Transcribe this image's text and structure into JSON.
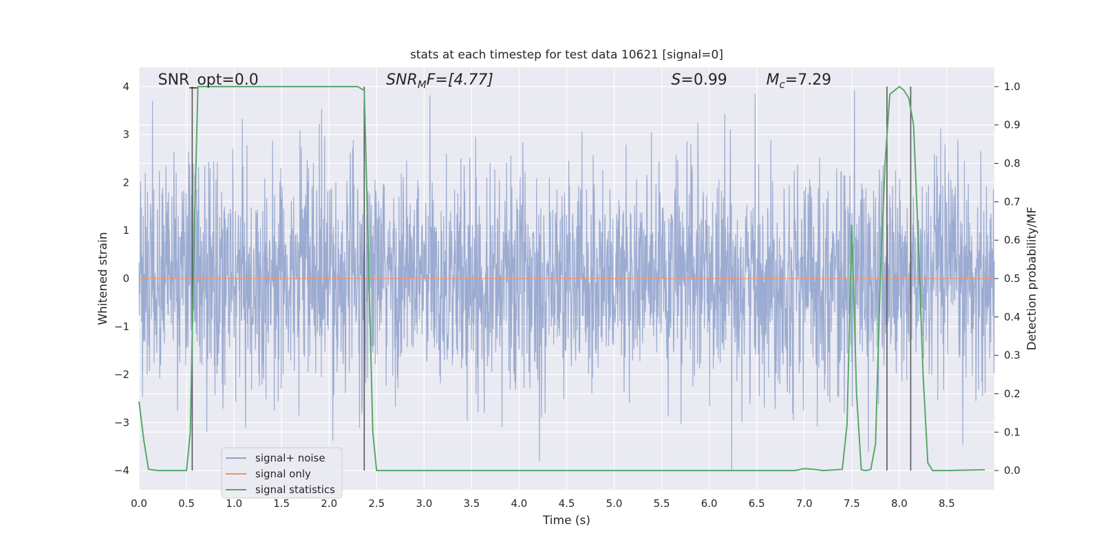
{
  "chart_data": {
    "type": "line",
    "title": "stats at each timestep for test data 10621 [signal=0]",
    "xlabel": "Time (s)",
    "ylabel_left": "Whitened strain",
    "ylabel_right": "Detection probability/MF",
    "xlim": [
      0.0,
      9.0
    ],
    "ylim_left": [
      -4.4,
      4.4
    ],
    "ylim_right": [
      -0.05,
      1.05
    ],
    "x_ticks": [
      "0.0",
      "0.5",
      "1.0",
      "1.5",
      "2.0",
      "2.5",
      "3.0",
      "3.5",
      "4.0",
      "4.5",
      "5.0",
      "5.5",
      "6.0",
      "6.5",
      "7.0",
      "7.5",
      "8.0",
      "8.5"
    ],
    "y_ticks_left": [
      "−4",
      "−3",
      "−2",
      "−1",
      "0",
      "1",
      "2",
      "3",
      "4"
    ],
    "y_ticks_right": [
      "0.0",
      "0.1",
      "0.2",
      "0.3",
      "0.4",
      "0.5",
      "0.6",
      "0.7",
      "0.8",
      "0.9",
      "1.0"
    ],
    "grid": true,
    "legend_position": "lower-left",
    "background_color": "#eaeaf2",
    "annotations": [
      {
        "text": "SNR_opt=0.0",
        "x": 0.2
      },
      {
        "text": "SNR",
        "sub": "M",
        "suffix": "F=[4.77]",
        "x": 2.6
      },
      {
        "text": "S",
        "suffix": "=0.99",
        "x": 5.6
      },
      {
        "text": "M",
        "sub": "c",
        "suffix": "=7.29",
        "x": 6.6
      }
    ],
    "vertical_lines": [
      {
        "x": 0.56,
        "ymin": -4.0,
        "ymax": 4.0
      },
      {
        "x": 2.37,
        "ymin": -4.0,
        "ymax": 4.0
      },
      {
        "x": 7.87,
        "ymin": -4.0,
        "ymax": 4.0
      },
      {
        "x": 8.12,
        "ymin": -4.0,
        "ymax": 4.0
      }
    ],
    "series": [
      {
        "name": "signal+ noise",
        "axis": "left",
        "color": "#8da0cb",
        "description": "dense whitened noise, typical amplitude about ±1.6 with peaks up to ±4",
        "envelope": {
          "typical_amplitude": 1.6,
          "max_amplitude": 4.0
        }
      },
      {
        "name": "signal only",
        "axis": "left",
        "color": "#fc8d62",
        "x": [
          0.0,
          9.0
        ],
        "values": [
          0.0,
          0.0
        ]
      },
      {
        "name": "signal statistics",
        "axis": "right",
        "color": "#55a868",
        "x": [
          0.0,
          0.05,
          0.1,
          0.2,
          0.5,
          0.54,
          0.58,
          0.62,
          0.65,
          1.0,
          2.0,
          2.3,
          2.37,
          2.42,
          2.46,
          2.5,
          3.0,
          4.0,
          5.0,
          6.0,
          6.9,
          7.0,
          7.1,
          7.2,
          7.4,
          7.45,
          7.5,
          7.55,
          7.6,
          7.65,
          7.7,
          7.75,
          7.8,
          7.85,
          7.9,
          7.95,
          8.0,
          8.05,
          8.1,
          8.15,
          8.2,
          8.25,
          8.3,
          8.35,
          8.5,
          8.9
        ],
        "values": [
          0.18,
          0.08,
          0.003,
          0.0,
          0.0,
          0.1,
          0.6,
          1.0,
          1.0,
          1.0,
          1.0,
          1.0,
          0.99,
          0.5,
          0.1,
          0.0,
          0.0,
          0.0,
          0.0,
          0.0,
          0.0,
          0.005,
          0.003,
          0.0,
          0.003,
          0.12,
          0.64,
          0.2,
          0.002,
          0.0,
          0.003,
          0.07,
          0.5,
          0.8,
          0.98,
          0.99,
          1.0,
          0.99,
          0.97,
          0.9,
          0.6,
          0.25,
          0.02,
          0.0,
          0.0,
          0.002
        ]
      }
    ]
  }
}
